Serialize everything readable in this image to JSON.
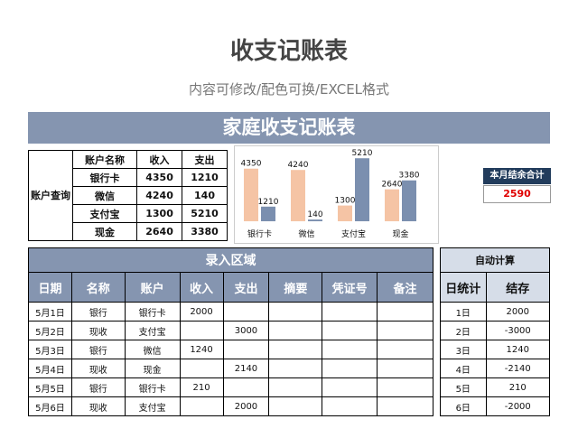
{
  "title": "收支记账表",
  "subtitle": "内容可修改/配色可换/EXCEL格式",
  "banner": "家庭收支记账表",
  "accounts": {
    "side_label": "账户查询",
    "headers": [
      "账户名称",
      "收入",
      "支出"
    ],
    "rows": [
      [
        "银行卡",
        "4350",
        "1210"
      ],
      [
        "微信",
        "4240",
        "140"
      ],
      [
        "支付宝",
        "1300",
        "5210"
      ],
      [
        "现金",
        "2640",
        "3380"
      ]
    ]
  },
  "chart_data": {
    "type": "bar",
    "categories": [
      "银行卡",
      "微信",
      "支付宝",
      "现金"
    ],
    "series": [
      {
        "values": [
          4350,
          4240,
          1300,
          2640
        ]
      },
      {
        "values": [
          1210,
          140,
          5210,
          3380
        ]
      }
    ],
    "ylim": [
      0,
      5600
    ],
    "grid": false,
    "colors": [
      "#f5c4a5",
      "#7b8faf"
    ]
  },
  "monthly": {
    "label": "本月结余合计",
    "value": "2590"
  },
  "entry": {
    "section_label": "录入区域",
    "headers": [
      "日期",
      "名称",
      "账户",
      "收入",
      "支出",
      "摘要",
      "凭证号",
      "备注"
    ],
    "rows": [
      [
        "5月1日",
        "银行",
        "银行卡",
        "2000",
        "",
        "",
        "",
        ""
      ],
      [
        "5月2日",
        "现收",
        "支付宝",
        "",
        "3000",
        "",
        "",
        ""
      ],
      [
        "5月3日",
        "银行",
        "微信",
        "1240",
        "",
        "",
        "",
        ""
      ],
      [
        "5月4日",
        "现收",
        "现金",
        "",
        "2140",
        "",
        "",
        ""
      ],
      [
        "5月5日",
        "银行",
        "银行卡",
        "210",
        "",
        "",
        "",
        ""
      ],
      [
        "5月6日",
        "现收",
        "支付宝",
        "",
        "2000",
        "",
        "",
        ""
      ]
    ]
  },
  "auto": {
    "section_label": "自动计算",
    "headers": [
      "日统计",
      "结存"
    ],
    "rows": [
      [
        "1日",
        "2000"
      ],
      [
        "2日",
        "-3000"
      ],
      [
        "3日",
        "1240"
      ],
      [
        "4日",
        "-2140"
      ],
      [
        "5日",
        "210"
      ],
      [
        "6日",
        "-2000"
      ]
    ]
  }
}
